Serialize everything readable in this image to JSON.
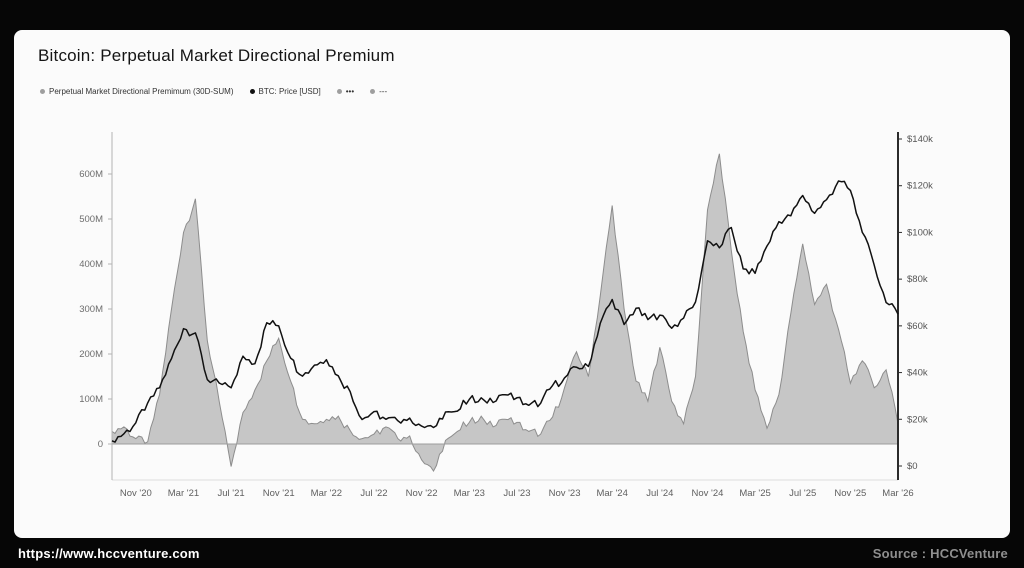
{
  "page": {
    "title": "Bitcoin: Perpetual Market Directional Premium",
    "footer_left": "https://www.hccventure.com",
    "footer_right": "Source : HCCVenture"
  },
  "legend": [
    {
      "label": "Perpetual Market Directional Premimum (30D-SUM)",
      "color": "#9e9e9e"
    },
    {
      "label": "BTC: Price [USD]",
      "color": "#111111"
    },
    {
      "label": "•••",
      "color": "#9e9e9e"
    },
    {
      "label": "---",
      "color": "#9e9e9e"
    }
  ],
  "chart_data": {
    "type": "area+line",
    "title": "Bitcoin: Perpetual Market Directional Premium",
    "x_start": "2020-09",
    "x_interval": "monthly",
    "x_tick_labels": [
      "Nov '20",
      "Mar '21",
      "Jul '21",
      "Nov '21",
      "Mar '22",
      "Jul '22",
      "Nov '22",
      "Mar '23",
      "Jul '23",
      "Nov '23",
      "Mar '24",
      "Jul '24",
      "Nov '24",
      "Mar '25",
      "Jul '25",
      "Nov '25",
      "Mar '26"
    ],
    "left_axis": {
      "unit": "USD millions",
      "tick_values": [
        0,
        100,
        200,
        300,
        400,
        500,
        600
      ],
      "tick_labels": [
        "0",
        "100M",
        "200M",
        "300M",
        "400M",
        "500M",
        "600M"
      ],
      "min": -80,
      "max": 690
    },
    "right_axis": {
      "unit": "USD thousands",
      "tick_values": [
        0,
        20,
        40,
        60,
        80,
        100,
        120,
        140
      ],
      "tick_labels": [
        "$0",
        "$20k",
        "$40k",
        "$60k",
        "$80k",
        "$100k",
        "$120k",
        "$140k"
      ],
      "min": 0,
      "max": 154
    },
    "series": [
      {
        "name": "Perpetual Market Directional Premimum (30D-SUM)",
        "type": "area",
        "axis": "left",
        "fill": "#c3c3c3",
        "stroke": "#8d8d8d",
        "values": [
          28,
          38,
          12,
          5,
          110,
          300,
          470,
          545,
          230,
          95,
          -50,
          70,
          120,
          185,
          235,
          140,
          55,
          45,
          55,
          62,
          30,
          12,
          22,
          38,
          12,
          18,
          -35,
          -60,
          8,
          28,
          48,
          62,
          38,
          55,
          48,
          28,
          22,
          60,
          125,
          205,
          150,
          330,
          530,
          300,
          140,
          95,
          215,
          95,
          45,
          150,
          520,
          645,
          430,
          250,
          120,
          35,
          110,
          290,
          445,
          310,
          355,
          255,
          135,
          185,
          125,
          165,
          45
        ]
      },
      {
        "name": "BTC: Price [USD]",
        "type": "line",
        "axis": "right",
        "stroke": "#111111",
        "values": [
          10.8,
          13.8,
          18.5,
          27,
          33.5,
          46,
          58.8,
          57,
          37,
          35.5,
          33.5,
          47,
          43.8,
          61.3,
          60,
          46.2,
          38.5,
          43.2,
          45.5,
          38.6,
          31.8,
          19.9,
          23.3,
          20,
          19.4,
          20.5,
          17.1,
          16.5,
          23.1,
          23.5,
          28.5,
          29.2,
          27.2,
          30.5,
          29.2,
          26,
          26.9,
          34.5,
          37.7,
          42.3,
          42.6,
          61.2,
          71.3,
          60.6,
          67.5,
          62.7,
          64.6,
          59,
          63.3,
          70.2,
          96.4,
          93.4,
          102.1,
          84.4,
          82.5,
          94.2,
          104.6,
          107.1,
          115.8,
          108.2,
          114,
          122,
          118,
          100,
          86,
          70,
          65
        ]
      }
    ],
    "grid": false,
    "legend_position": "top-left"
  }
}
